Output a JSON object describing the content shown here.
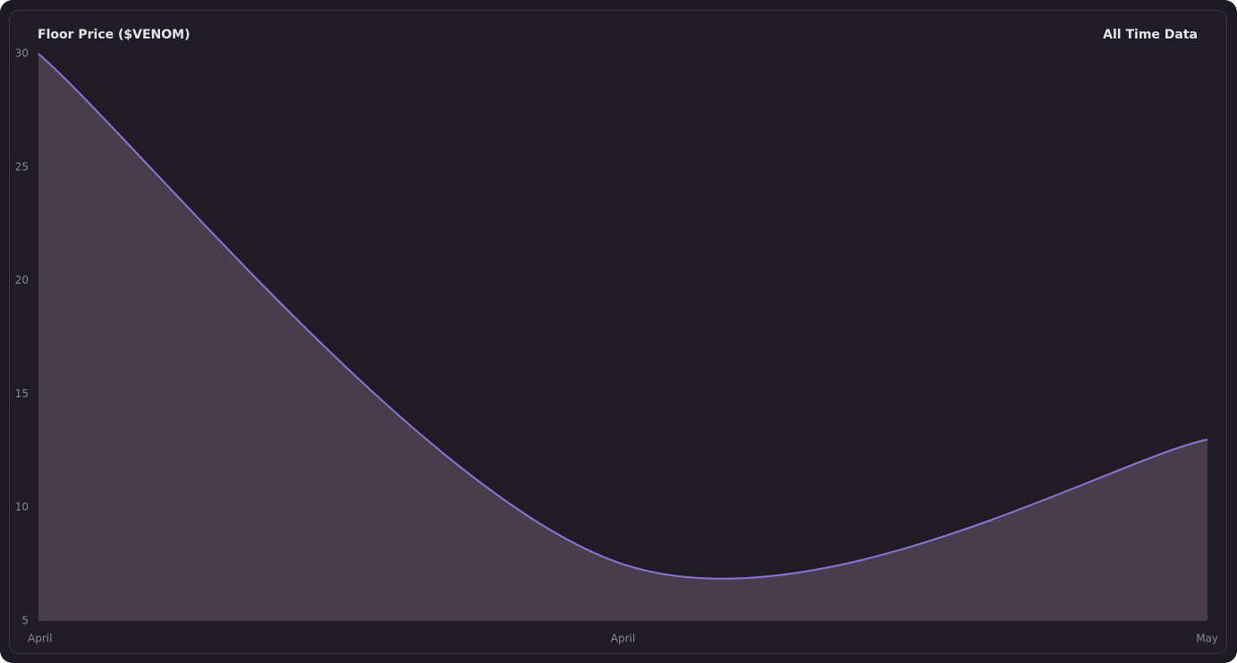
{
  "chart_data": {
    "type": "area",
    "title": "Floor Price ($VENOM)",
    "annotation": "All Time Data",
    "categories": [
      "April",
      "April",
      "May"
    ],
    "series": [
      {
        "name": "Floor Price",
        "color": "#8b74d8",
        "fill": "#473d4d",
        "values": [
          30,
          7.5,
          13
        ]
      }
    ],
    "ylim": [
      5,
      30
    ],
    "yticks": [
      5,
      10,
      15,
      20,
      25,
      30
    ],
    "grid": false
  }
}
